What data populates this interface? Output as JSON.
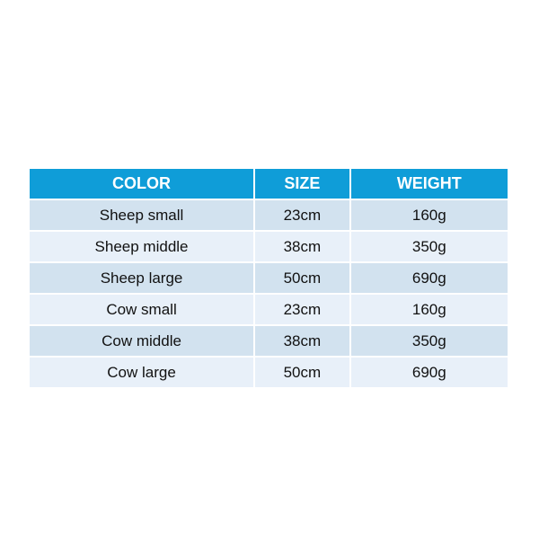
{
  "table": {
    "headers": [
      "COLOR",
      "SIZE",
      "WEIGHT"
    ],
    "rows": [
      [
        "Sheep small",
        "23cm",
        "160g"
      ],
      [
        "Sheep middle",
        "38cm",
        "350g"
      ],
      [
        "Sheep large",
        "50cm",
        "690g"
      ],
      [
        "Cow small",
        "23cm",
        "160g"
      ],
      [
        "Cow middle",
        "38cm",
        "350g"
      ],
      [
        "Cow large",
        "50cm",
        "690g"
      ]
    ]
  },
  "colors": {
    "header": "#0f9dd8",
    "row_a": "#d2e2ef",
    "row_b": "#e8f0f9"
  }
}
